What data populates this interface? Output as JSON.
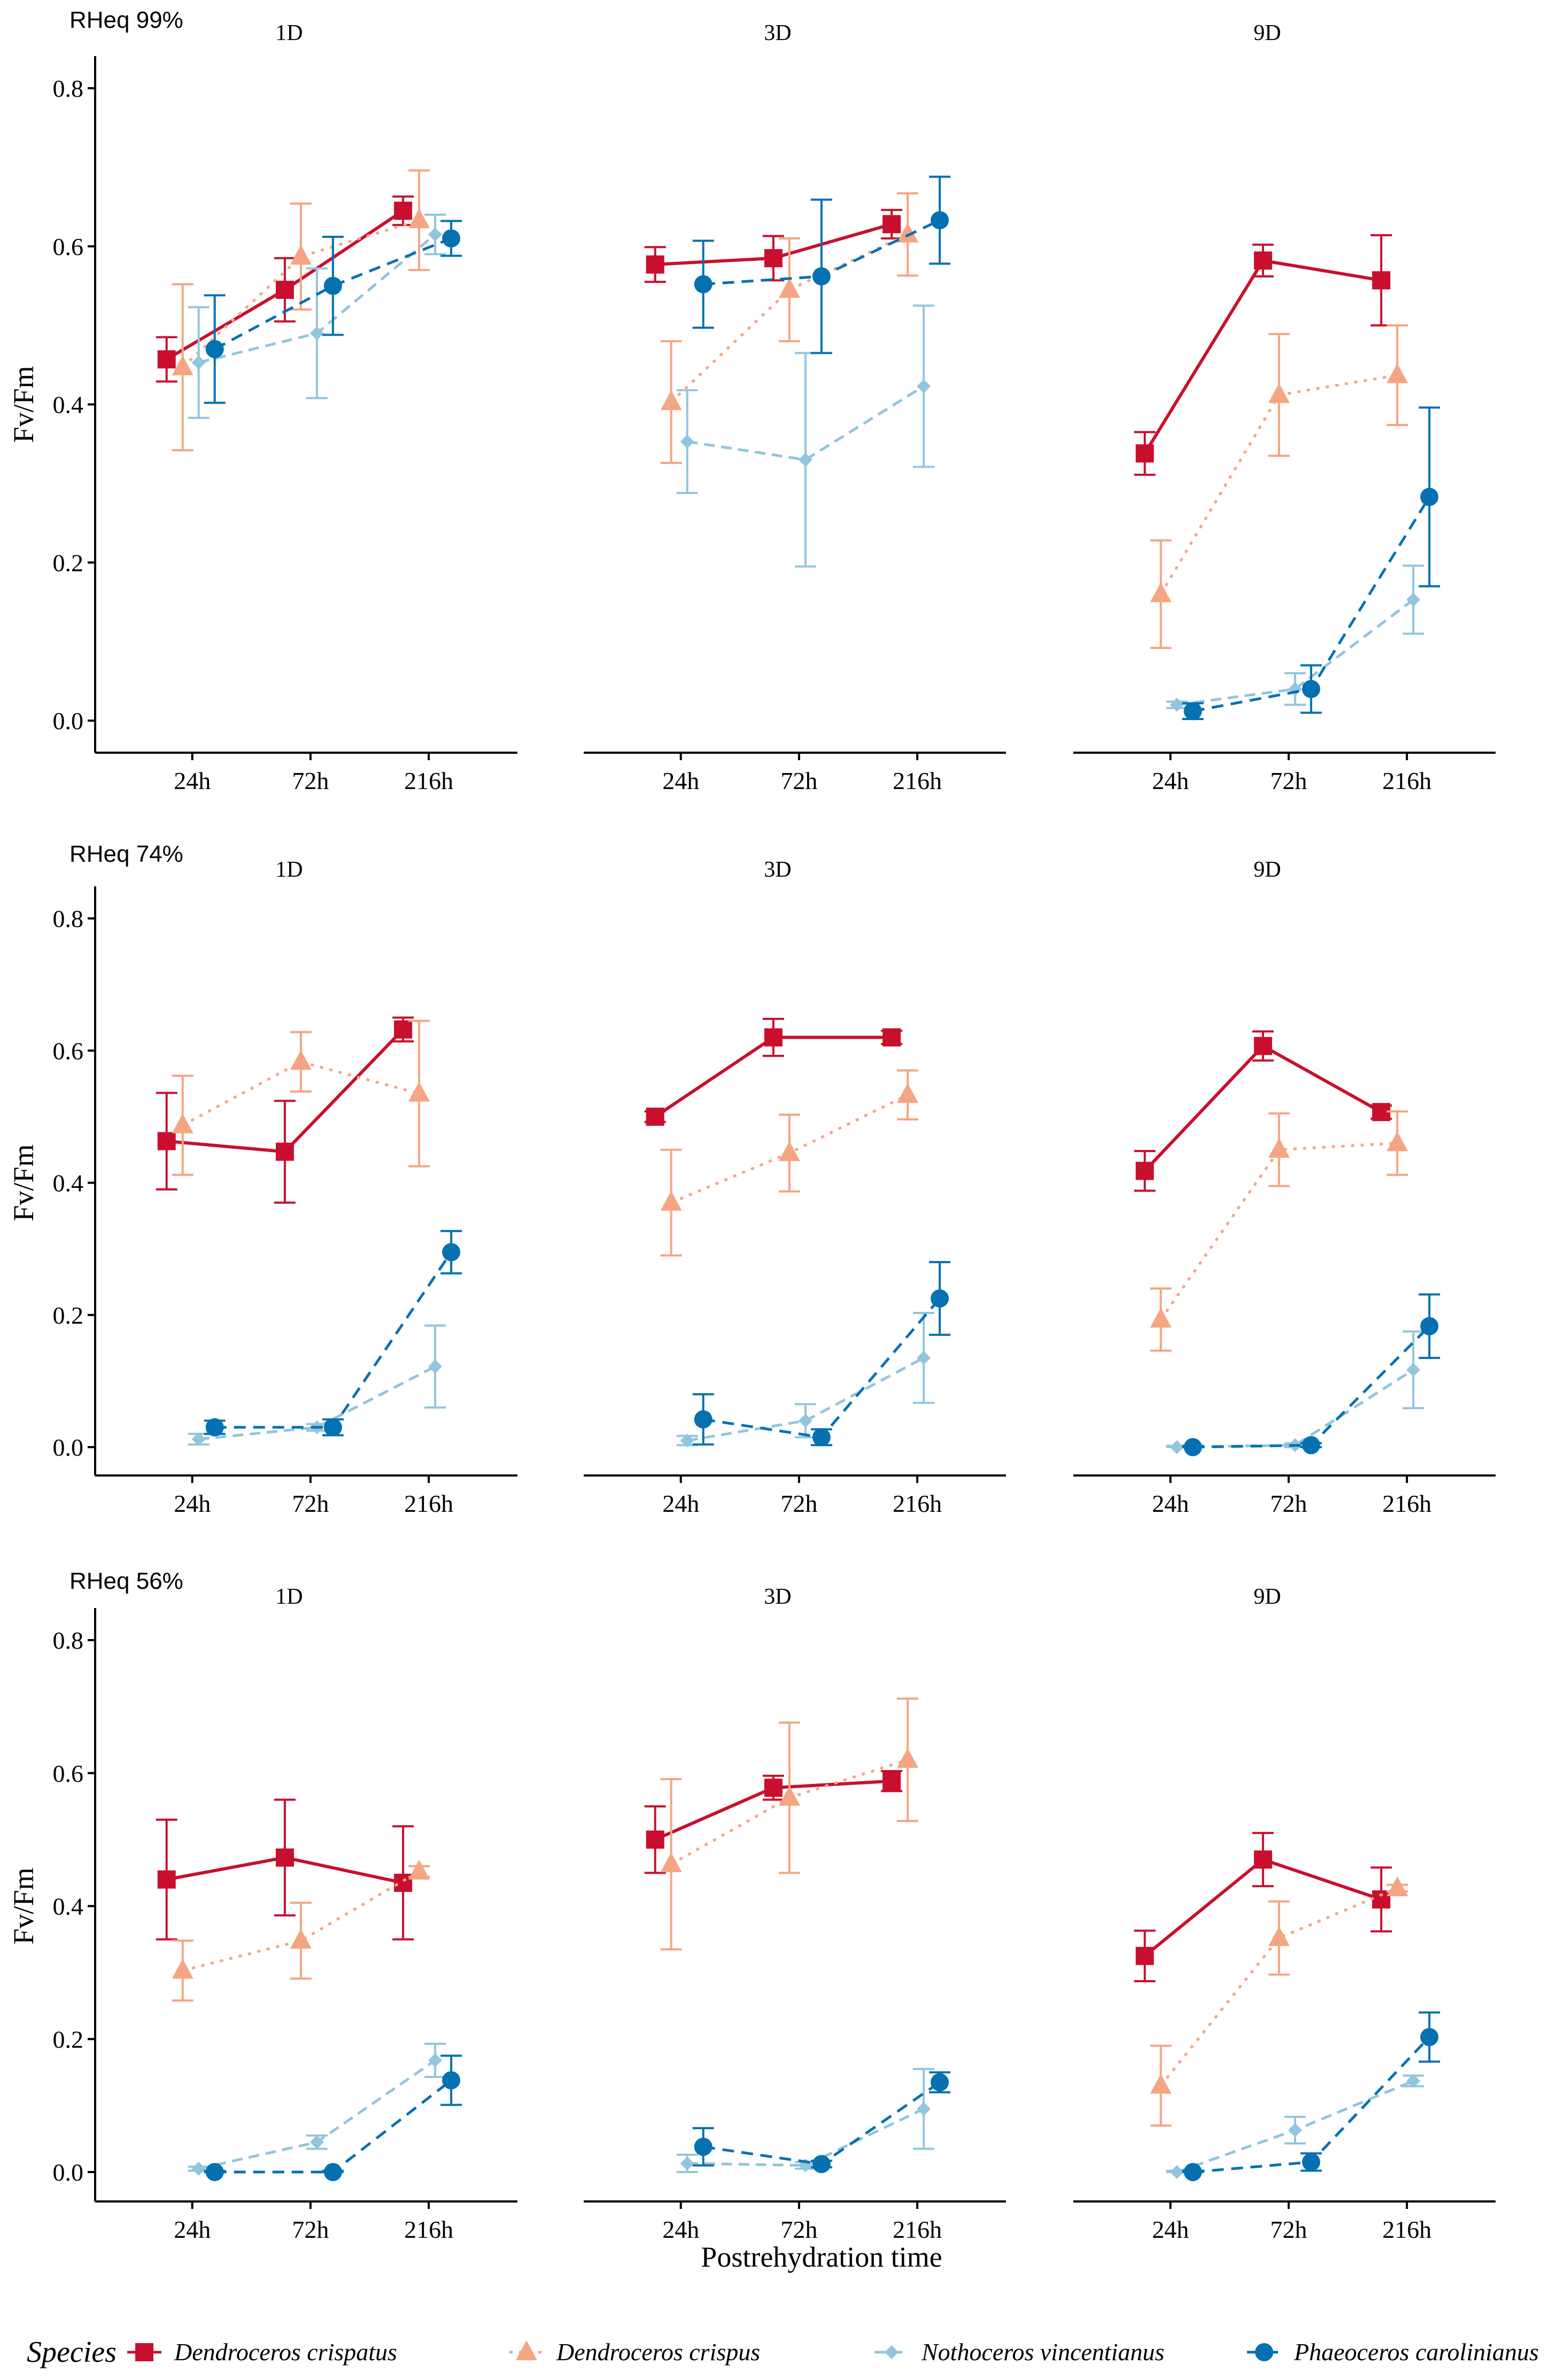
{
  "chart_data": {
    "type": "line",
    "title": "",
    "xlabel": "Postrehydration time",
    "ylabel": "Fv/Fm",
    "categories": [
      "24h",
      "72h",
      "216h"
    ],
    "ylim": [
      0,
      0.8
    ],
    "yticks": [
      "0.0",
      "0.2",
      "0.4",
      "0.6",
      "0.8"
    ],
    "legend": {
      "title": "Species",
      "placement": "bottom",
      "items": [
        {
          "name": "Dendroceros crispatus",
          "color": "#c8102e",
          "marker": "square",
          "line": "solid"
        },
        {
          "name": "Dendroceros crispus",
          "color": "#f4a582",
          "marker": "triangle",
          "line": "dotted"
        },
        {
          "name": "Nothoceros vincentianus",
          "color": "#92c5de",
          "marker": "diamond",
          "line": "dashed"
        },
        {
          "name": "Phaeoceros carolinianus",
          "color": "#0571b0",
          "marker": "circle",
          "line": "dashed"
        }
      ]
    },
    "rows": [
      {
        "label": "RHeq 99%",
        "panels": [
          {
            "title": "1D",
            "series": [
              {
                "name": "Dendroceros crispatus",
                "values": [
                  0.457,
                  0.545,
                  0.645
                ],
                "err": [
                  0.028,
                  0.04,
                  0.018
                ]
              },
              {
                "name": "Dendroceros crispus",
                "values": [
                  0.447,
                  0.587,
                  0.633
                ],
                "err": [
                  0.105,
                  0.067,
                  0.063
                ]
              },
              {
                "name": "Nothoceros vincentianus",
                "values": [
                  0.453,
                  0.49,
                  0.615
                ],
                "err": [
                  0.07,
                  0.082,
                  0.025
                ]
              },
              {
                "name": "Phaeoceros carolinianus",
                "values": [
                  0.47,
                  0.55,
                  0.61
                ],
                "err": [
                  0.068,
                  0.062,
                  0.022
                ]
              }
            ]
          },
          {
            "title": "3D",
            "series": [
              {
                "name": "Dendroceros crispatus",
                "values": [
                  0.577,
                  0.585,
                  0.628
                ],
                "err": [
                  0.022,
                  0.028,
                  0.018
                ]
              },
              {
                "name": "Dendroceros crispus",
                "values": [
                  0.403,
                  0.545,
                  0.615
                ],
                "err": [
                  0.077,
                  0.065,
                  0.052
                ]
              },
              {
                "name": "Nothoceros vincentianus",
                "values": [
                  0.353,
                  0.33,
                  0.423
                ],
                "err": [
                  0.065,
                  0.135,
                  0.102
                ]
              },
              {
                "name": "Phaeoceros carolinianus",
                "values": [
                  0.552,
                  0.562,
                  0.633
                ],
                "err": [
                  0.055,
                  0.097,
                  0.055
                ]
              }
            ]
          },
          {
            "title": "9D",
            "series": [
              {
                "name": "Dendroceros crispatus",
                "values": [
                  0.338,
                  0.582,
                  0.557
                ],
                "err": [
                  0.027,
                  0.02,
                  0.057
                ]
              },
              {
                "name": "Dendroceros crispus",
                "values": [
                  0.16,
                  0.412,
                  0.437
                ],
                "err": [
                  0.068,
                  0.077,
                  0.063
                ]
              },
              {
                "name": "Nothoceros vincentianus",
                "values": [
                  0.02,
                  0.04,
                  0.153
                ],
                "err": [
                  0.004,
                  0.02,
                  0.043
                ]
              },
              {
                "name": "Phaeoceros carolinianus",
                "values": [
                  0.012,
                  0.04,
                  0.283
                ],
                "err": [
                  0.01,
                  0.03,
                  0.113
                ]
              }
            ]
          }
        ]
      },
      {
        "label": "RHeq 74%",
        "panels": [
          {
            "title": "1D",
            "series": [
              {
                "name": "Dendroceros crispatus",
                "values": [
                  0.463,
                  0.447,
                  0.632
                ],
                "err": [
                  0.073,
                  0.077,
                  0.018
                ]
              },
              {
                "name": "Dendroceros crispus",
                "values": [
                  0.487,
                  0.583,
                  0.535
                ],
                "err": [
                  0.075,
                  0.045,
                  0.11
                ]
              },
              {
                "name": "Nothoceros vincentianus",
                "values": [
                  0.012,
                  0.03,
                  0.122
                ],
                "err": [
                  0.008,
                  0.005,
                  0.062
                ]
              },
              {
                "name": "Phaeoceros carolinianus",
                "values": [
                  0.03,
                  0.03,
                  0.295
                ],
                "err": [
                  0.01,
                  0.012,
                  0.032
                ]
              }
            ]
          },
          {
            "title": "3D",
            "series": [
              {
                "name": "Dendroceros crispatus",
                "values": [
                  0.5,
                  0.62,
                  0.62
                ],
                "err": [
                  0.008,
                  0.028,
                  0.01
                ]
              },
              {
                "name": "Dendroceros crispus",
                "values": [
                  0.37,
                  0.445,
                  0.533
                ],
                "err": [
                  0.08,
                  0.058,
                  0.037
                ]
              },
              {
                "name": "Nothoceros vincentianus",
                "values": [
                  0.01,
                  0.04,
                  0.135
                ],
                "err": [
                  0.007,
                  0.025,
                  0.068
                ]
              },
              {
                "name": "Phaeoceros carolinianus",
                "values": [
                  0.042,
                  0.015,
                  0.225
                ],
                "err": [
                  0.038,
                  0.012,
                  0.055
                ]
              }
            ]
          },
          {
            "title": "9D",
            "series": [
              {
                "name": "Dendroceros crispatus",
                "values": [
                  0.418,
                  0.607,
                  0.507
                ],
                "err": [
                  0.03,
                  0.022,
                  0.01
                ]
              },
              {
                "name": "Dendroceros crispus",
                "values": [
                  0.193,
                  0.45,
                  0.46
                ],
                "err": [
                  0.047,
                  0.055,
                  0.048
                ]
              },
              {
                "name": "Nothoceros vincentianus",
                "values": [
                  0.0,
                  0.003,
                  0.117
                ],
                "err": [
                  0.002,
                  0.003,
                  0.058
                ]
              },
              {
                "name": "Phaeoceros carolinianus",
                "values": [
                  0.0,
                  0.003,
                  0.183
                ],
                "err": [
                  0.002,
                  0.003,
                  0.048
                ]
              }
            ]
          }
        ]
      },
      {
        "label": "RHeq 56%",
        "panels": [
          {
            "title": "1D",
            "series": [
              {
                "name": "Dendroceros crispatus",
                "values": [
                  0.44,
                  0.473,
                  0.435
                ],
                "err": [
                  0.09,
                  0.087,
                  0.085
                ]
              },
              {
                "name": "Dendroceros crispus",
                "values": [
                  0.303,
                  0.348,
                  0.452
                ],
                "err": [
                  0.045,
                  0.057,
                  0.008
                ]
              },
              {
                "name": "Nothoceros vincentianus",
                "values": [
                  0.005,
                  0.045,
                  0.168
                ],
                "err": [
                  0.003,
                  0.01,
                  0.025
                ]
              },
              {
                "name": "Phaeoceros carolinianus",
                "values": [
                  0.0,
                  0.0,
                  0.138
                ],
                "err": [
                  0.002,
                  0.002,
                  0.037
                ]
              }
            ]
          },
          {
            "title": "3D",
            "series": [
              {
                "name": "Dendroceros crispatus",
                "values": [
                  0.5,
                  0.578,
                  0.588
                ],
                "err": [
                  0.05,
                  0.018,
                  0.015
                ]
              },
              {
                "name": "Dendroceros crispus",
                "values": [
                  0.463,
                  0.563,
                  0.62
                ],
                "err": [
                  0.128,
                  0.113,
                  0.092
                ]
              },
              {
                "name": "Nothoceros vincentianus",
                "values": [
                  0.013,
                  0.01,
                  0.095
                ],
                "err": [
                  0.013,
                  0.005,
                  0.06
                ]
              },
              {
                "name": "Phaeoceros carolinianus",
                "values": [
                  0.038,
                  0.012,
                  0.135
                ],
                "err": [
                  0.028,
                  0.005,
                  0.015
                ]
              }
            ]
          },
          {
            "title": "9D",
            "series": [
              {
                "name": "Dendroceros crispatus",
                "values": [
                  0.325,
                  0.47,
                  0.41
                ],
                "err": [
                  0.038,
                  0.04,
                  0.048
                ]
              },
              {
                "name": "Dendroceros crispus",
                "values": [
                  0.13,
                  0.352,
                  0.427
                ],
                "err": [
                  0.06,
                  0.055,
                  0.005
                ]
              },
              {
                "name": "Nothoceros vincentianus",
                "values": [
                  0.0,
                  0.063,
                  0.137
                ],
                "err": [
                  0.002,
                  0.02,
                  0.008
                ]
              },
              {
                "name": "Phaeoceros carolinianus",
                "values": [
                  0.0,
                  0.015,
                  0.203
                ],
                "err": [
                  0.002,
                  0.013,
                  0.037
                ]
              }
            ]
          }
        ]
      }
    ]
  }
}
